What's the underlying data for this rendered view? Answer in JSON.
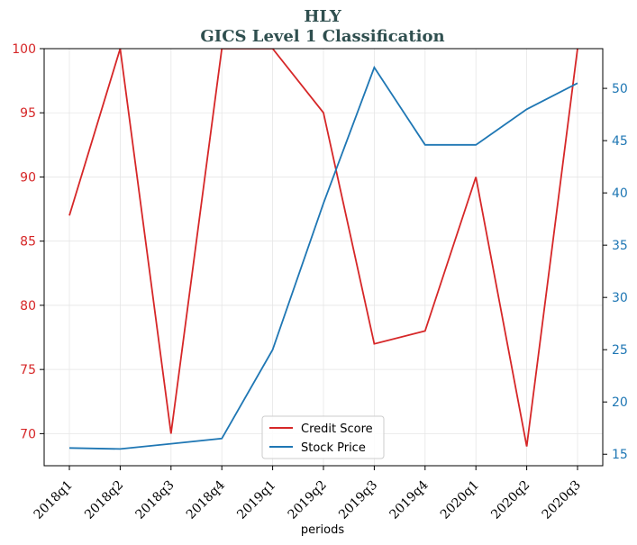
{
  "chart_data": {
    "type": "line",
    "title": "HLY",
    "subtitle": "GICS Level 1 Classification",
    "xlabel": "periods",
    "categories": [
      "2018q1",
      "2018q2",
      "2018q3",
      "2018q4",
      "2019q1",
      "2019q2",
      "2019q3",
      "2019q4",
      "2020q1",
      "2020q2",
      "2020q3"
    ],
    "y_left": {
      "lim": [
        67.5,
        100
      ],
      "ticks": [
        70,
        75,
        80,
        85,
        90,
        95,
        100
      ],
      "color": "#d62728"
    },
    "y_right": {
      "lim": [
        13.9,
        53.8
      ],
      "ticks": [
        15,
        20,
        25,
        30,
        35,
        40,
        45,
        50
      ],
      "color": "#1f77b4"
    },
    "series": [
      {
        "name": "Credit Score",
        "axis": "left",
        "color": "#d62728",
        "values": [
          87,
          100,
          70,
          100,
          100,
          95,
          77,
          78,
          90,
          69,
          100
        ]
      },
      {
        "name": "Stock Price",
        "axis": "right",
        "color": "#1f77b4",
        "values": [
          15.6,
          15.5,
          16.0,
          16.5,
          25.0,
          39.0,
          52.0,
          44.6,
          44.6,
          48.0,
          50.5
        ]
      }
    ],
    "grid": true,
    "legend_position": "bottom-center"
  }
}
